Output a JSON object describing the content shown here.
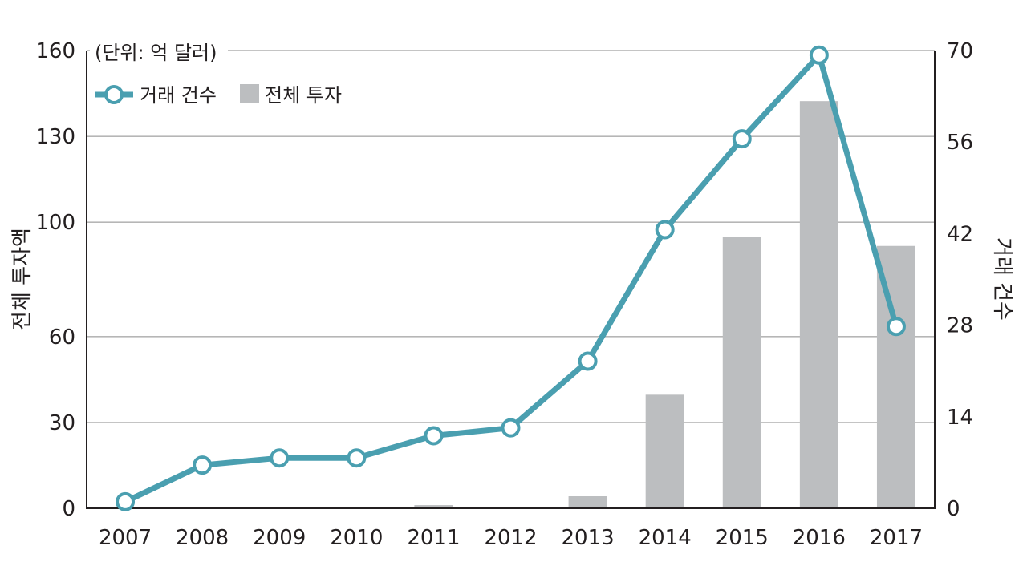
{
  "chart_data": {
    "type": "bar",
    "unit_note": "(단위: 억 달러)",
    "ylabel_left": "전체 투자액",
    "ylabel_right": "거래 건수",
    "categories": [
      "2007",
      "2008",
      "2009",
      "2010",
      "2011",
      "2012",
      "2013",
      "2014",
      "2015",
      "2016",
      "2017"
    ],
    "left_axis": {
      "ylim": [
        0,
        160
      ],
      "ticks": [
        0,
        30,
        60,
        100,
        130,
        160
      ]
    },
    "right_axis": {
      "ylim": [
        0,
        70
      ],
      "ticks": [
        0,
        14,
        28,
        42,
        56,
        70
      ]
    },
    "series": [
      {
        "name": "전체 투자",
        "type": "bar",
        "axis": "left",
        "color": "#bcbec0",
        "values": [
          0,
          0,
          0,
          0,
          1.1,
          0,
          4.2,
          39.7,
          94.8,
          142.3,
          91.7
        ]
      },
      {
        "name": "거래 건수",
        "type": "line",
        "axis": "right",
        "color": "#4a9fb0",
        "values": [
          1,
          6.6,
          7.7,
          7.7,
          11.1,
          12.3,
          22.5,
          42.6,
          56.5,
          69.3,
          27.8
        ]
      }
    ],
    "gridlines": true,
    "legend": "top-left"
  }
}
